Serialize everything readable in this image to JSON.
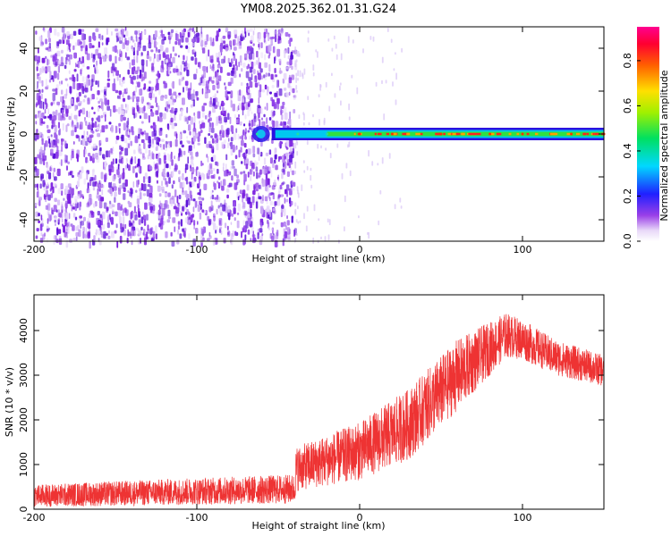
{
  "title": "YM08.2025.362.01.31.G24",
  "chart_data": [
    {
      "type": "heatmap",
      "name": "spectrogram",
      "xlabel": "Height of straight line (km)",
      "ylabel": "Frequency (Hz)",
      "xlim": [
        -200,
        150
      ],
      "ylim": [
        -50,
        50
      ],
      "xticks": [
        -200,
        -100,
        0,
        100
      ],
      "yticks": [
        -40,
        -20,
        0,
        20,
        40
      ],
      "noise_region_end_km": -40,
      "signal": {
        "onset_km": -65,
        "frequency_hz": 0,
        "points": [
          {
            "x": -63,
            "y": 0,
            "amp": 0.25
          },
          {
            "x": -38,
            "y": 0,
            "amp": 0.3
          },
          {
            "x": -20,
            "y": 0,
            "amp": 0.4
          },
          {
            "x": 0,
            "y": 0,
            "amp": 0.7
          },
          {
            "x": 20,
            "y": 0,
            "amp": 0.8
          },
          {
            "x": 50,
            "y": 0,
            "amp": 0.85
          },
          {
            "x": 80,
            "y": 0,
            "amp": 0.9
          },
          {
            "x": 100,
            "y": 0,
            "amp": 0.9
          },
          {
            "x": 130,
            "y": 0,
            "amp": 0.85
          },
          {
            "x": 150,
            "y": 0,
            "amp": 0.8
          }
        ]
      },
      "colorbar": {
        "label": "Normalized spectral amplitude",
        "range": [
          0.0,
          0.95
        ],
        "ticks": [
          "0.0",
          "0.2",
          "0.4",
          "0.6",
          "0.8"
        ],
        "tick_values": [
          0.0,
          0.2,
          0.4,
          0.6,
          0.8
        ],
        "colormap": "rainbow (white-violet-blue-cyan-green-yellow-red-magenta)"
      }
    },
    {
      "type": "line",
      "name": "snr",
      "color": "#ee3333",
      "xlabel": "Height of straight line (km)",
      "ylabel": "SNR (10 * v/v)",
      "xlim": [
        -200,
        150
      ],
      "ylim": [
        0,
        4800
      ],
      "xticks": [
        -200,
        -100,
        0,
        100
      ],
      "yticks": [
        0,
        1000,
        2000,
        3000,
        4000
      ],
      "envelope": {
        "x": [
          -200,
          -150,
          -100,
          -40,
          -39,
          0,
          30,
          60,
          90,
          100,
          120,
          150
        ],
        "mean": [
          300,
          350,
          400,
          450,
          900,
          1300,
          1900,
          3000,
          3900,
          3800,
          3400,
          3100
        ],
        "spread": [
          250,
          280,
          300,
          330,
          500,
          650,
          800,
          800,
          500,
          450,
          400,
          350
        ]
      }
    }
  ]
}
